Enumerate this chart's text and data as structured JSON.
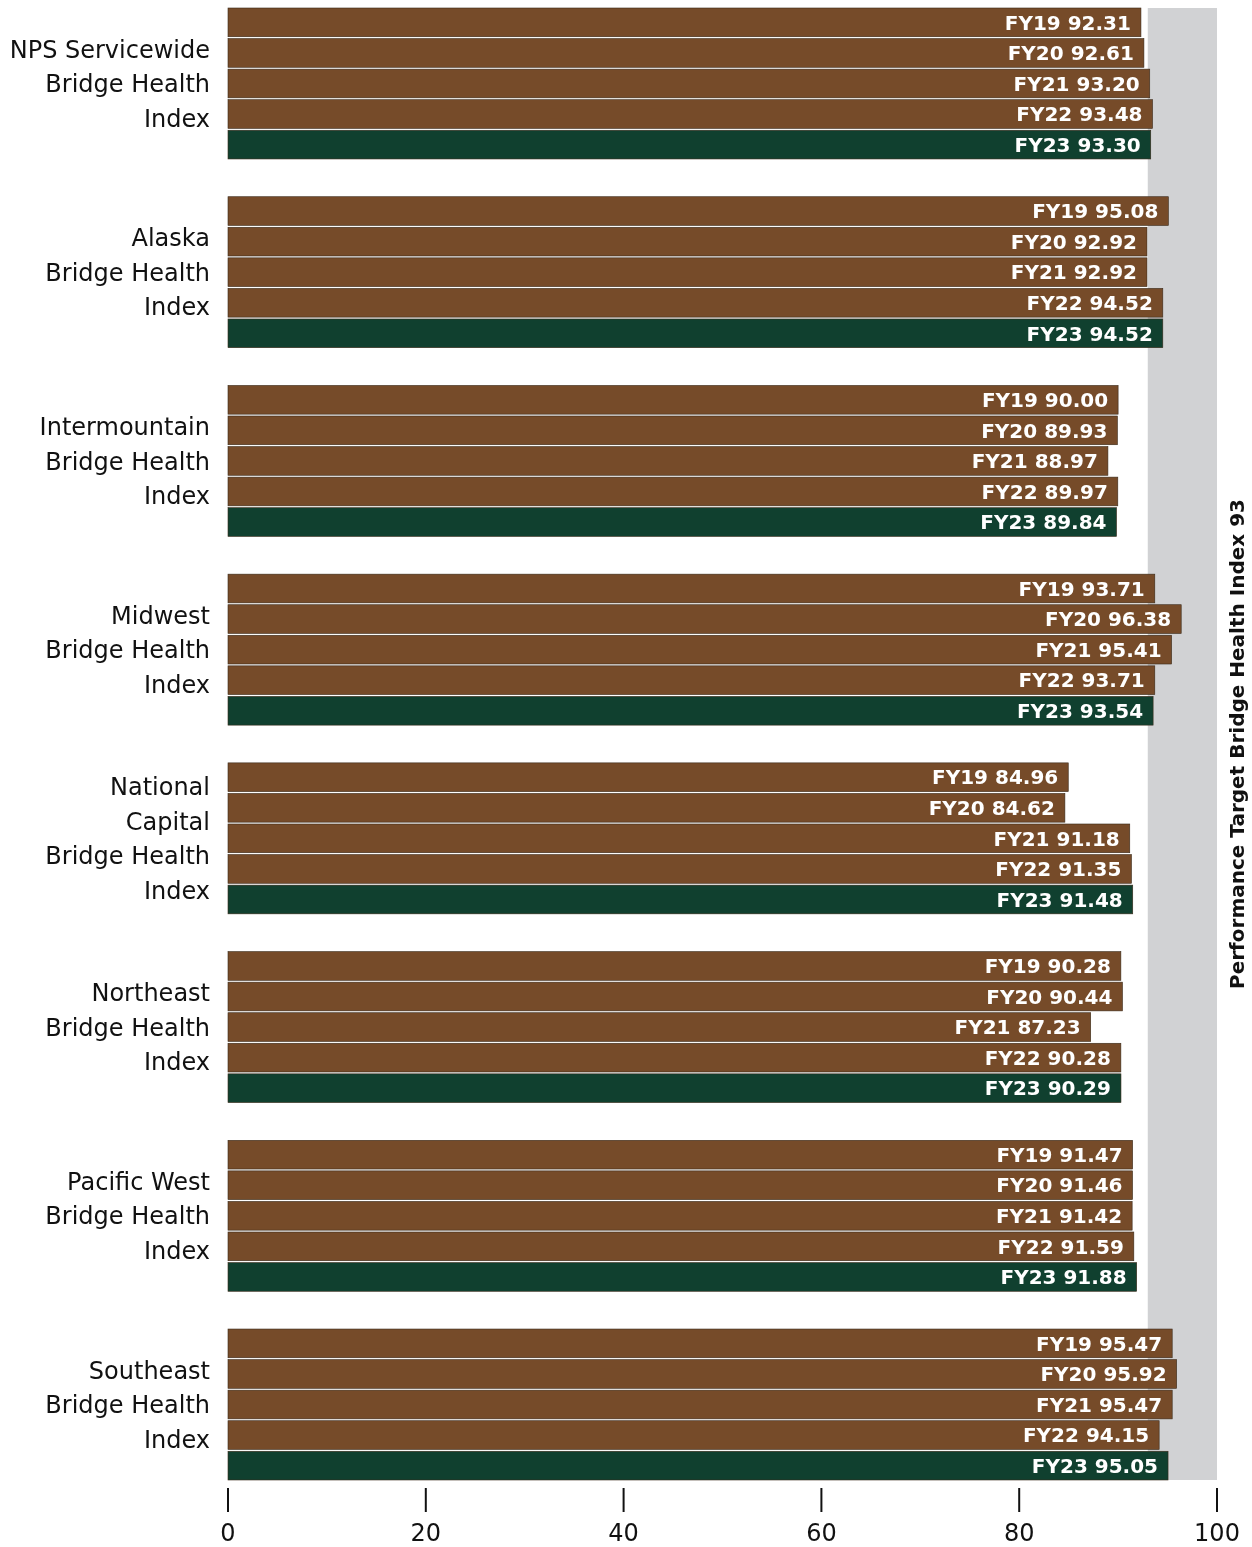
{
  "chart_data": {
    "type": "bar",
    "orientation": "horizontal",
    "categories": [
      "NPS Servicewide\nBridge Health\nIndex",
      "Alaska\nBridge Health\nIndex",
      "Intermountain\nBridge Health\nIndex",
      "Midwest\nBridge Health\nIndex",
      "National\nCapital\nBridge Health\nIndex",
      "Northeast\nBridge Health\nIndex",
      "Pacific West\nBridge Health\nIndex",
      "Southeast\nBridge Health\nIndex"
    ],
    "series": [
      {
        "name": "FY19",
        "color": "#764b29",
        "values": [
          92.31,
          95.08,
          90.0,
          93.71,
          84.96,
          90.28,
          91.47,
          95.47
        ],
        "value_labels": [
          "92.31",
          "95.08",
          "90.00",
          "93.71",
          "84.96",
          "90.28",
          "91.47",
          "95.47"
        ]
      },
      {
        "name": "FY20",
        "color": "#764b29",
        "values": [
          92.61,
          92.92,
          89.93,
          96.38,
          84.62,
          90.44,
          91.46,
          95.92
        ],
        "value_labels": [
          "92.61",
          "92.92",
          "89.93",
          "96.38",
          "84.62",
          "90.44",
          "91.46",
          "95.92"
        ]
      },
      {
        "name": "FY21",
        "color": "#764b29",
        "values": [
          93.2,
          92.92,
          88.97,
          95.41,
          91.18,
          87.23,
          91.42,
          95.47
        ],
        "value_labels": [
          "93.20",
          "92.92",
          "88.97",
          "95.41",
          "91.18",
          "87.23",
          "91.42",
          "95.47"
        ]
      },
      {
        "name": "FY22",
        "color": "#764b29",
        "values": [
          93.48,
          94.52,
          89.97,
          93.71,
          91.35,
          90.28,
          91.59,
          94.15
        ],
        "value_labels": [
          "93.48",
          "94.52",
          "89.97",
          "93.71",
          "91.35",
          "90.28",
          "91.59",
          "94.15"
        ]
      },
      {
        "name": "FY23",
        "color": "#10402f",
        "values": [
          93.3,
          94.52,
          89.84,
          93.54,
          91.48,
          90.29,
          91.88,
          95.05
        ],
        "value_labels": [
          "93.30",
          "94.52",
          "89.84",
          "93.54",
          "91.48",
          "90.29",
          "91.88",
          "95.05"
        ]
      }
    ],
    "xlim": [
      0,
      100
    ],
    "xticks": [
      0,
      20,
      40,
      60,
      80,
      100
    ],
    "bands": [
      {
        "axis": "x",
        "from": 93,
        "to": 100,
        "label": "Performance Target Bridge Health Index 93",
        "color": "#d1d2d4"
      }
    ],
    "grid": false
  }
}
